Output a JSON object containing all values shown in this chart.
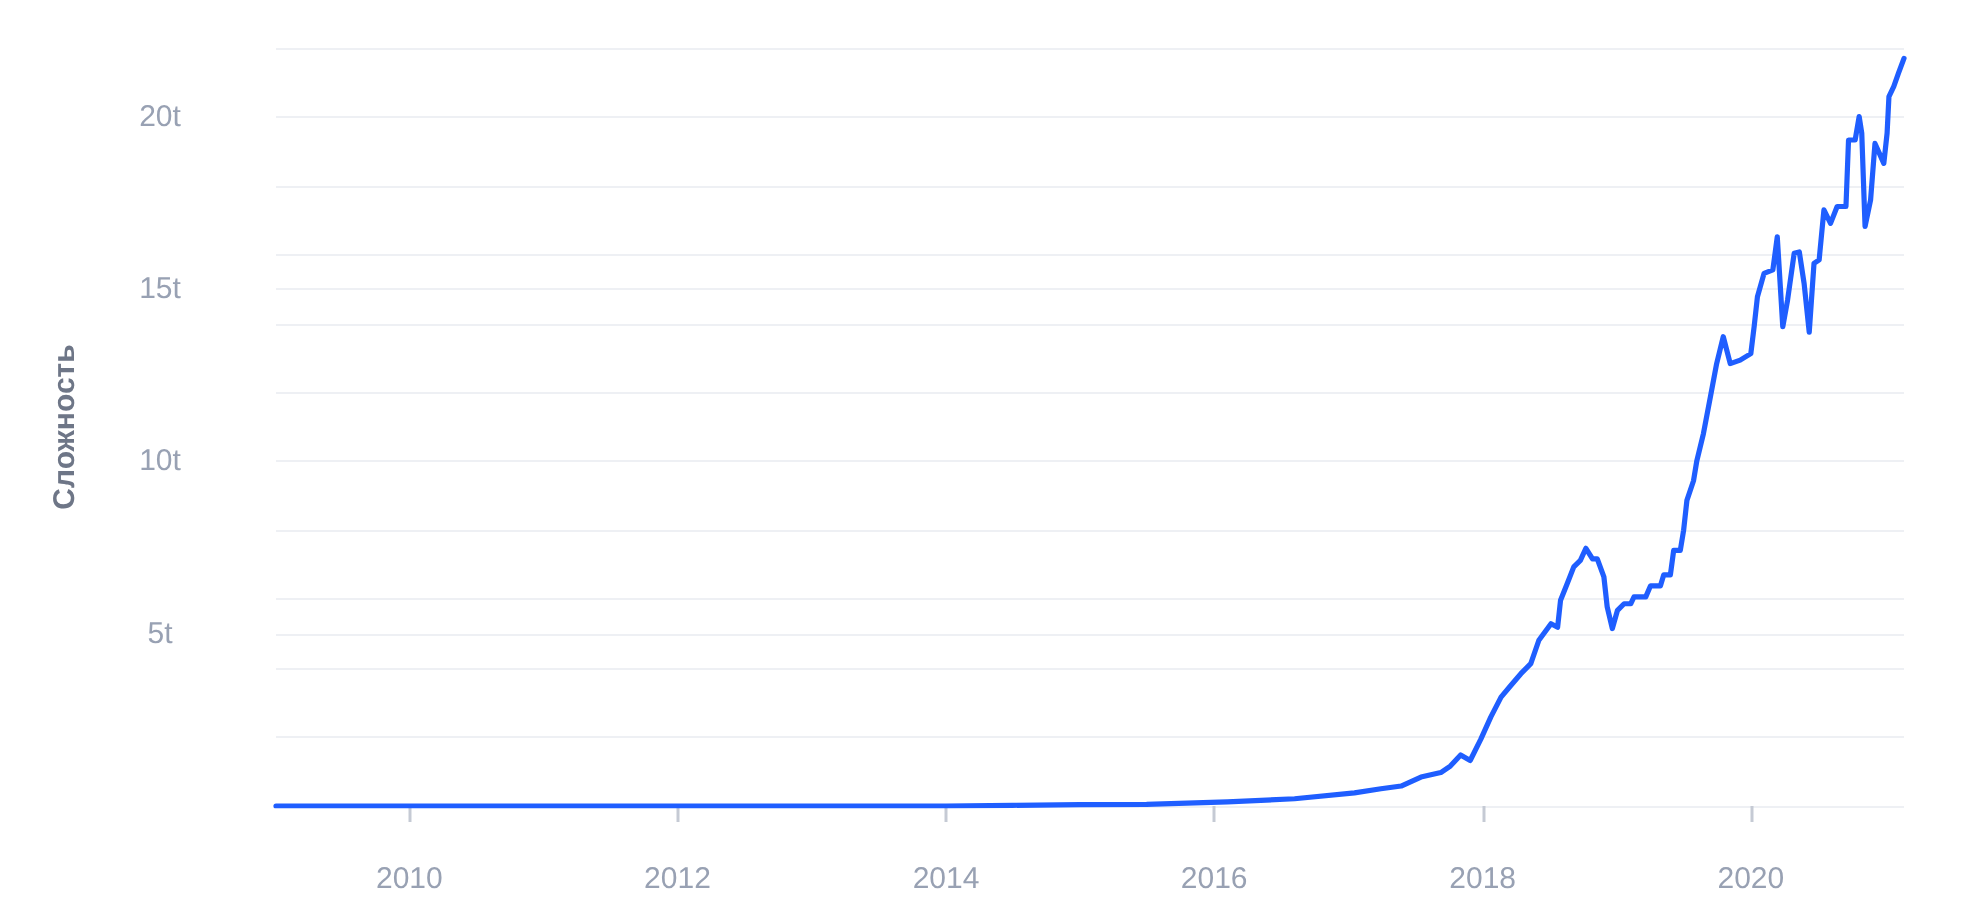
{
  "chart_data": {
    "type": "line",
    "ylabel": "Сложность",
    "color": "#1f5eff",
    "x": [
      "2009-01-03",
      "2010-01-01",
      "2011-01-01",
      "2012-01-01",
      "2013-01-01",
      "2014-01-01",
      "2014-07-01",
      "2015-01-01",
      "2015-07-01",
      "2016-02-06",
      "2016-08-07",
      "2017-01-17",
      "2017-03-30",
      "2017-05-24",
      "2017-07-17",
      "2017-09-09",
      "2017-10-05",
      "2017-11-02",
      "2017-11-28",
      "2017-12-27",
      "2018-01-23",
      "2018-02-20",
      "2018-03-18",
      "2018-04-15",
      "2018-05-12",
      "2018-06-03",
      "2018-07-06",
      "2018-07-24",
      "2018-08-01",
      "2018-08-19",
      "2018-09-06",
      "2018-09-24",
      "2018-10-09",
      "2018-10-27",
      "2018-11-09",
      "2018-11-27",
      "2018-12-06",
      "2018-12-20",
      "2019-01-03",
      "2019-01-21",
      "2019-02-08",
      "2019-02-17",
      "2019-03-21",
      "2019-04-03",
      "2019-04-30",
      "2019-05-09",
      "2019-05-27",
      "2019-06-05",
      "2019-06-23",
      "2019-07-02",
      "2019-07-11",
      "2019-07-29",
      "2019-08-07",
      "2019-08-25",
      "2019-09-13",
      "2019-09-30",
      "2019-10-18",
      "2019-11-06",
      "2019-12-03",
      "2020-01-01",
      "2020-01-10",
      "2020-01-19",
      "2020-02-06",
      "2020-03-01",
      "2020-03-13",
      "2020-03-28",
      "2020-04-10",
      "2020-04-28",
      "2020-05-12",
      "2020-05-25",
      "2020-06-08",
      "2020-06-21",
      "2020-07-05",
      "2020-07-18",
      "2020-08-05",
      "2020-08-23",
      "2020-09-16",
      "2020-09-23",
      "2020-10-11",
      "2020-10-22",
      "2020-10-29",
      "2020-11-07",
      "2020-11-22",
      "2020-12-04",
      "2020-12-28",
      "2021-01-06",
      "2021-01-11",
      "2021-01-24",
      "2021-02-06",
      "2021-02-21"
    ],
    "values": [
      0,
      0,
      0,
      0,
      0,
      0,
      0.02,
      0.04,
      0.05,
      0.12,
      0.21,
      0.38,
      0.5,
      0.58,
      0.84,
      0.97,
      1.16,
      1.48,
      1.32,
      1.94,
      2.58,
      3.16,
      3.49,
      3.84,
      4.13,
      4.81,
      5.29,
      5.19,
      5.97,
      6.45,
      6.94,
      7.13,
      7.48,
      7.17,
      7.17,
      6.65,
      5.78,
      5.15,
      5.68,
      5.87,
      5.87,
      6.07,
      6.07,
      6.39,
      6.39,
      6.71,
      6.71,
      7.42,
      7.42,
      8.0,
      8.87,
      9.44,
      10.02,
      10.81,
      11.88,
      12.84,
      13.62,
      12.84,
      12.94,
      13.13,
      13.91,
      14.78,
      15.46,
      15.56,
      16.52,
      13.91,
      14.68,
      16.04,
      16.08,
      15.17,
      13.75,
      15.75,
      15.85,
      17.3,
      16.91,
      17.4,
      17.4,
      19.33,
      19.33,
      20.01,
      19.53,
      16.82,
      17.59,
      19.23,
      18.65,
      19.53,
      20.59,
      20.88,
      21.27,
      21.7
    ],
    "xlim": [
      "2009-01-03",
      "2021-02-21"
    ],
    "xticks": [
      "2010",
      "2012",
      "2014",
      "2016",
      "2018",
      "2020"
    ],
    "ylim": [
      0,
      22
    ],
    "yticks": [
      {
        "value": 0,
        "label": null
      },
      {
        "value": 2,
        "label": null
      },
      {
        "value": 4,
        "label": null
      },
      {
        "value": 5,
        "label": "5t"
      },
      {
        "value": 6,
        "label": null
      },
      {
        "value": 8,
        "label": null
      },
      {
        "value": 10,
        "label": "10t"
      },
      {
        "value": 12,
        "label": null
      },
      {
        "value": 14,
        "label": null
      },
      {
        "value": 15,
        "label": "15t"
      },
      {
        "value": 16,
        "label": null
      },
      {
        "value": 18,
        "label": null
      },
      {
        "value": 20,
        "label": "20t"
      },
      {
        "value": 22,
        "label": null
      }
    ],
    "grid": "y"
  }
}
